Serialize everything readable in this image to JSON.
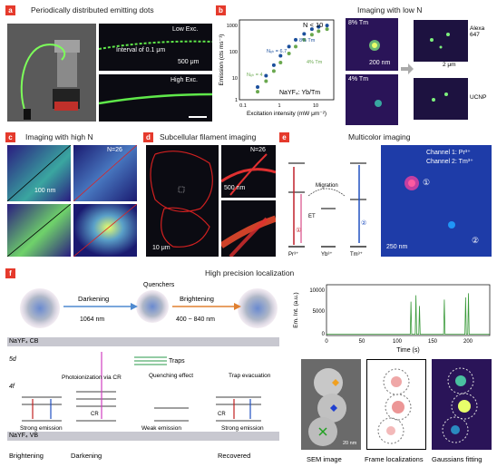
{
  "panels": {
    "a": {
      "letter": "a",
      "title": "Periodically distributed emitting dots",
      "low_exc": "Low Exc.",
      "high_exc": "High Exc.",
      "interval": "Interval of 0.1 μm",
      "scale": "500 μm"
    },
    "b": {
      "letter": "b",
      "imaging_title": "Imaging with low N",
      "n_label": "N < 10",
      "host_label": "NaYF₄: Yb/Tm",
      "inset_8": "8% Tm",
      "inset_4": "4% Tm",
      "inset_scale": "200 nm",
      "scale_3d": "2 μm",
      "alexa": "Alexa\n647",
      "ucnp": "UCNP",
      "yaxis": "Emission (cts ms⁻¹)",
      "xaxis": "Excitation intensity (mW μm⁻²)",
      "series_labels": [
        "8% Tm",
        "4% Tm"
      ],
      "annot_8": "Nₑₕ = 6.7",
      "annot_4": "Nₑₕ = 4",
      "yticks": [
        "1000",
        "100",
        "10",
        "1"
      ],
      "xticks": [
        "0.1",
        "1",
        "10"
      ]
    },
    "c": {
      "letter": "c",
      "title": "Imaging with high N",
      "n_label": "N=26",
      "scale": "100 nm"
    },
    "d": {
      "letter": "d",
      "title": "Subcellular filament imaging",
      "n_label": "N=26",
      "scale_inset": "500 nm",
      "scale_main": "10 μm"
    },
    "e": {
      "letter": "e",
      "title": "Multicolor imaging",
      "ch1": "Channel 1: Pr³⁺",
      "ch2": "Channel 2: Tm³⁺",
      "migration": "Migration",
      "et": "ET",
      "pr": "Pr³⁺",
      "yb": "Yb³⁺",
      "tm": "Tm³⁺",
      "one": "①",
      "two": "②",
      "scale": "250 nm"
    },
    "f": {
      "letter": "f",
      "title": "High precision localization",
      "darkening": "Darkening",
      "brightening": "Brightening",
      "quenchers": "Quenchers",
      "wl_1064": "1064 nm",
      "wl_range": "400 ~ 840 nm",
      "cb": "NaYF₄ CB",
      "vb": "NaYF₄ VB",
      "level_5d": "5d",
      "level_4f": "4f",
      "photoionization": "Photoionization\nvia CR",
      "traps": "Traps",
      "quenching": "Quenching\neffect",
      "trap_evac": "Trap\nevacuation",
      "cr": "CR",
      "strong_emission": "Strong emission",
      "weak_emission": "Weak emission",
      "strong_emission_2": "Strong emission",
      "stage_brightening": "Brightening",
      "stage_darkening": "Darkening",
      "stage_recovered": "Recovered",
      "trace_ylabel": "Em. Int. (a.u.)",
      "trace_xlabel": "Time (s)",
      "trace_yticks": [
        "10000",
        "5000",
        "0"
      ],
      "trace_xticks": [
        "0",
        "50",
        "100",
        "150",
        "200"
      ],
      "sem": "SEM image",
      "frames": "Frame localizations",
      "gauss": "Gaussians fitting",
      "sem_scale": "20 nm"
    }
  },
  "chart_data": [
    {
      "type": "scatter",
      "panel": "b",
      "xlabel": "Excitation intensity (mW μm⁻²)",
      "ylabel": "Emission (cts ms⁻¹)",
      "xscale": "log",
      "yscale": "log",
      "xlim": [
        0.1,
        30
      ],
      "ylim": [
        1,
        1000
      ],
      "series": [
        {
          "name": "8% Tm",
          "color": "#1b4f9c",
          "x": [
            0.3,
            0.5,
            0.8,
            1.2,
            2,
            3,
            5,
            8,
            12,
            20
          ],
          "y": [
            3,
            8,
            20,
            45,
            100,
            180,
            300,
            450,
            550,
            620
          ]
        },
        {
          "name": "4% Tm",
          "color": "#6aa84f",
          "x": [
            0.3,
            0.5,
            0.8,
            1.2,
            2,
            3,
            5,
            8,
            12,
            20
          ],
          "y": [
            2,
            5,
            12,
            25,
            55,
            100,
            180,
            280,
            380,
            450
          ]
        }
      ]
    },
    {
      "type": "line",
      "panel": "f",
      "xlabel": "Time (s)",
      "ylabel": "Em. Int. (a.u.)",
      "xlim": [
        0,
        230
      ],
      "ylim": [
        0,
        12000
      ],
      "series": [
        {
          "name": "",
          "color": "#3a9a3a",
          "x": [
            0,
            118,
            119,
            120,
            125,
            126,
            127,
            130,
            131,
            132,
            165,
            166,
            167,
            195,
            196,
            197,
            199,
            200,
            201,
            230
          ],
          "y": [
            300,
            300,
            8000,
            300,
            300,
            9500,
            300,
            300,
            7000,
            300,
            300,
            8500,
            300,
            300,
            9000,
            300,
            300,
            10000,
            300,
            300
          ]
        }
      ]
    }
  ]
}
